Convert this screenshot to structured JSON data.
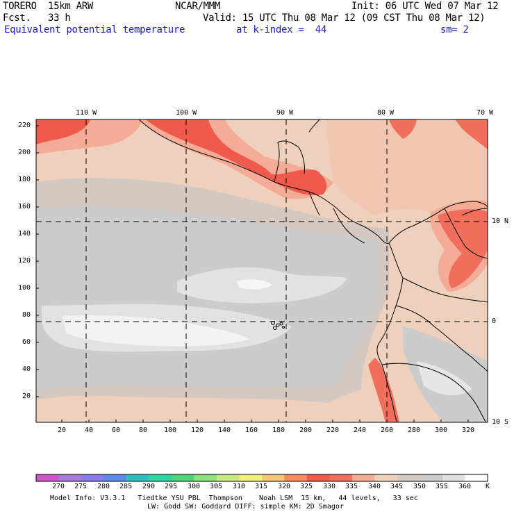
{
  "header": {
    "model": "TORERO  15km ARW",
    "org": "NCAR/MMM",
    "init": "Init: 06 UTC Wed 07 Mar 12",
    "fcst": "Fcst.   33 h",
    "valid": "Valid: 15 UTC Thu 08 Mar 12 (09 CST Thu 08 Mar 12)",
    "field": "Equivalent potential temperature",
    "level": "at k-index =  44",
    "smooth": "sm= 2"
  },
  "map": {
    "lon_labels": [
      "110 W",
      "100 W",
      "90 W",
      "80 W",
      "70 W"
    ],
    "lat_labels": [
      "10 N",
      "0",
      "10 S"
    ],
    "y_ticks": [
      "220",
      "200",
      "180",
      "160",
      "140",
      "120",
      "100",
      "80",
      "60",
      "40",
      "20"
    ],
    "x_ticks": [
      "20",
      "40",
      "60",
      "80",
      "100",
      "120",
      "140",
      "160",
      "180",
      "200",
      "220",
      "240",
      "260",
      "280",
      "300",
      "320"
    ]
  },
  "colorbar": {
    "values": [
      "270",
      "275",
      "280",
      "285",
      "290",
      "295",
      "300",
      "305",
      "310",
      "315",
      "320",
      "325",
      "330",
      "335",
      "340",
      "345",
      "350",
      "355",
      "360"
    ],
    "unit": "K",
    "colors": [
      "#cc55cc",
      "#a87ad8",
      "#8a7ce8",
      "#5b8ae8",
      "#2ec0c0",
      "#2ed4a0",
      "#4ed47a",
      "#8ae07a",
      "#c4e880",
      "#f0f07a",
      "#f6c878",
      "#f48c62",
      "#f05a4c",
      "#f06e5c",
      "#f4ac96",
      "#eed0bc",
      "#d6cac4",
      "#cccccc",
      "#e0e0e0",
      "#ffffff"
    ]
  },
  "footer": {
    "line1": "Model Info: V3.3.1   Tiedtke YSU PBL  Thompson    Noah LSM  15 km,   44 levels,   33 sec",
    "line2": "LW: Godd SW: Goddard DIFF: simple KM: 2D Smagor"
  }
}
